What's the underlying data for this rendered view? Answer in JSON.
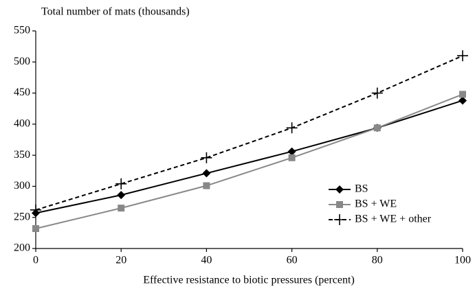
{
  "chart_data": {
    "type": "line",
    "ylabel": "Total number of mats (thousands)",
    "xlabel": "Effective resistance to biotic pressures (percent)",
    "x": [
      0,
      20,
      40,
      60,
      80,
      100
    ],
    "series": [
      {
        "name": "BS",
        "color": "#000000",
        "marker": "diamond",
        "linestyle": "solid",
        "values": [
          257,
          286,
          321,
          356,
          394,
          438
        ]
      },
      {
        "name": "BS + WE",
        "color": "#888888",
        "marker": "square",
        "linestyle": "solid",
        "values": [
          232,
          265,
          301,
          346,
          394,
          448
        ]
      },
      {
        "name": "BS + WE + other",
        "color": "#000000",
        "marker": "plus",
        "linestyle": "dashed",
        "values": [
          262,
          304,
          346,
          394,
          450,
          510
        ]
      }
    ],
    "xlim": [
      0,
      100
    ],
    "xticks": [
      0,
      20,
      40,
      60,
      80,
      100
    ],
    "ylim": [
      200,
      550
    ],
    "yticks": [
      200,
      250,
      300,
      350,
      400,
      450,
      500,
      550
    ],
    "grid": false,
    "legend": "lower right"
  }
}
